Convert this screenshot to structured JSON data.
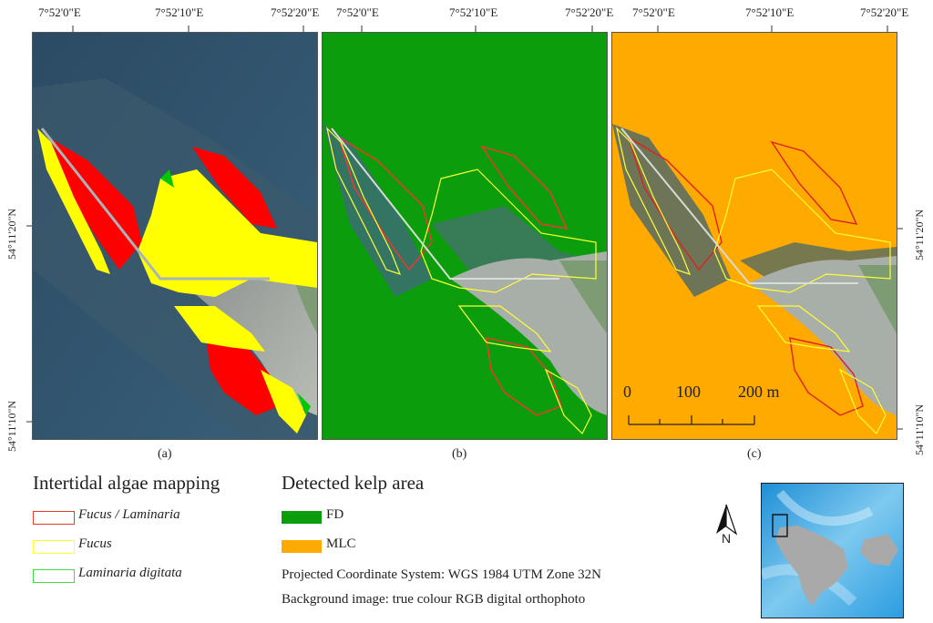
{
  "coords": {
    "top": [
      "7°52'0\"E",
      "7°52'10\"E",
      "7°52'20\"E"
    ],
    "left": [
      "54°11'20\"N",
      "54°11'10\"N"
    ]
  },
  "panels": [
    {
      "label": "(a)"
    },
    {
      "label": "(b)"
    },
    {
      "label": "(c)"
    }
  ],
  "scale_bar": {
    "ticks": [
      "0",
      "100",
      "200 m"
    ]
  },
  "legend": {
    "algae_title": "Intertidal algae mapping",
    "algae_items": [
      {
        "label": "Fucus / Laminaria",
        "color": "#e23b2b"
      },
      {
        "label": "Fucus",
        "color": "#ffff33"
      },
      {
        "label": "Laminaria digitata",
        "color": "#3fdd3f"
      }
    ],
    "kelp_title": "Detected kelp area",
    "kelp_items": [
      {
        "label": "FD",
        "color": "#0b9d0b"
      },
      {
        "label": "MLC",
        "color": "#ffaa00"
      }
    ],
    "notes": [
      "Projected Coordinate System: WGS 1984 UTM Zone 32N",
      "Background image: true colour RGB digital orthophoto"
    ]
  },
  "north_arrow": {
    "label": "N"
  },
  "colors": {
    "red": "#ff0000",
    "yellow": "#ffff00",
    "green": "#00c800",
    "fd": "#0b9d0b",
    "mlc": "#ffaa00",
    "sea": "#2d4f68"
  }
}
